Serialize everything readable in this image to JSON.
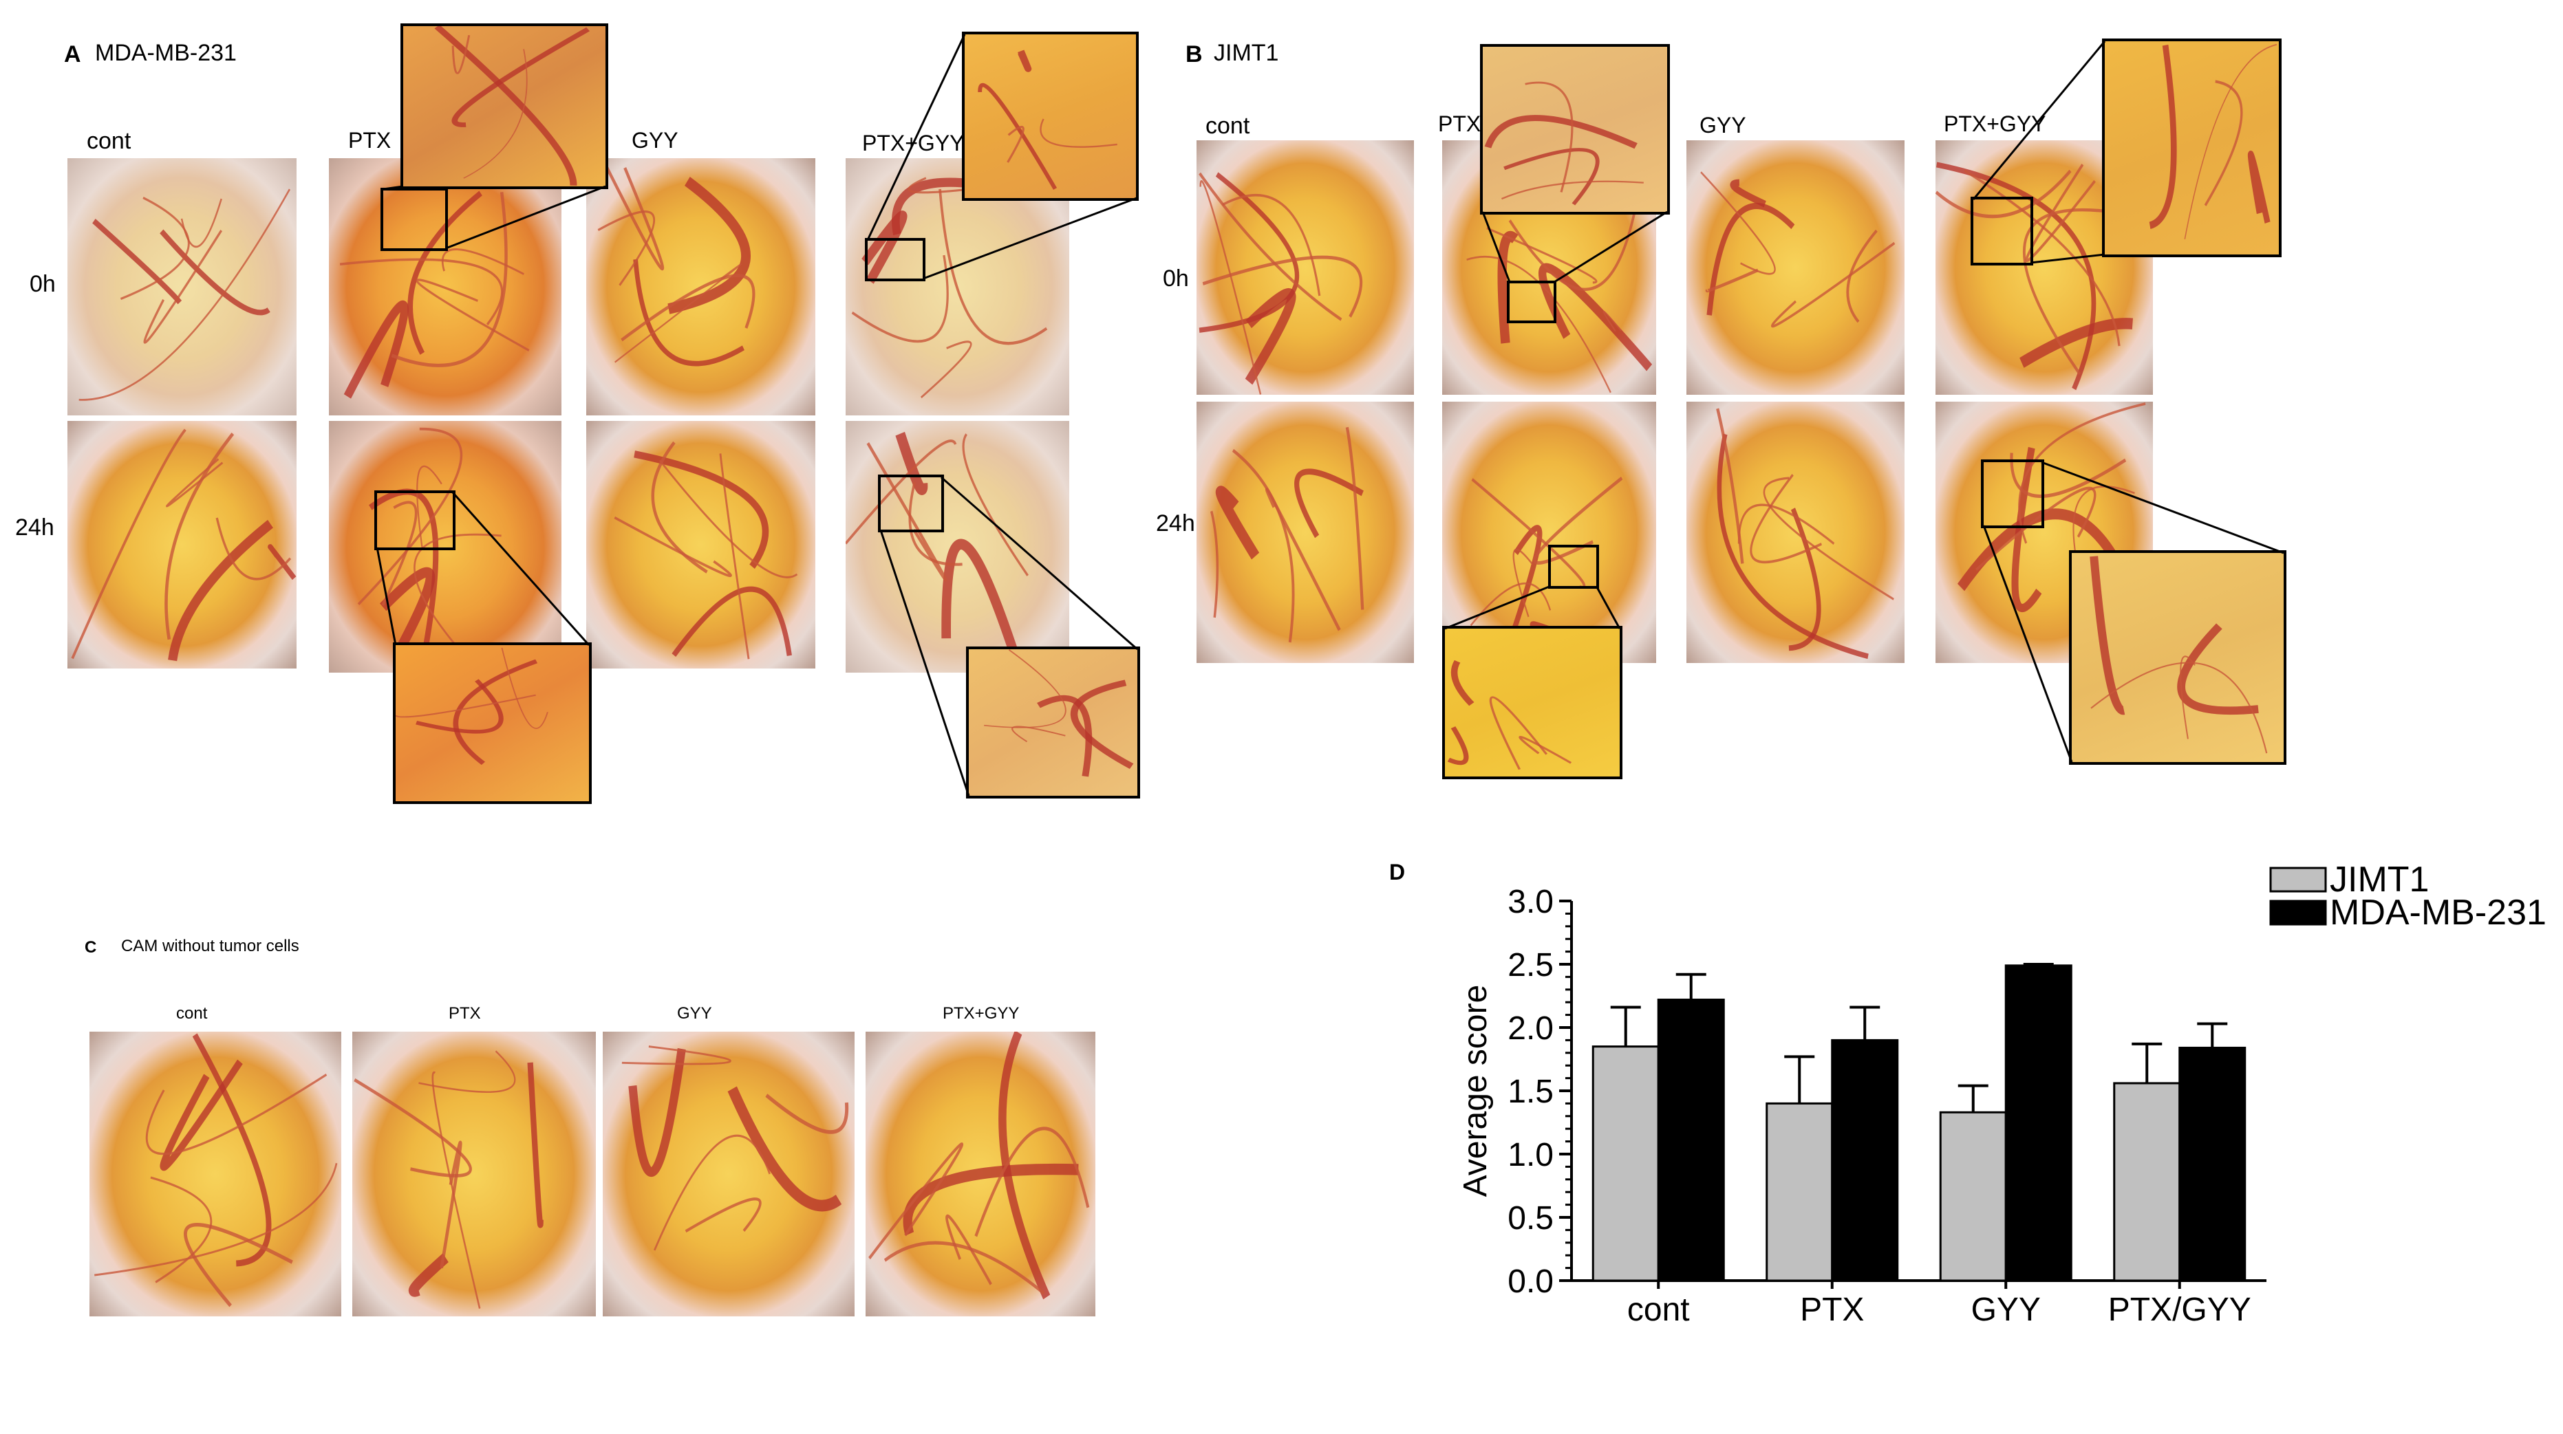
{
  "panel_a": {
    "letter": "A",
    "title": "MDA-MB-231",
    "columns": [
      "cont",
      "PTX",
      "GYY",
      "PTX+GYY"
    ],
    "rows": [
      "0h",
      "24h"
    ]
  },
  "panel_b": {
    "letter": "B",
    "title": "JIMT1",
    "columns": [
      "cont",
      "PTX",
      "GYY",
      "PTX+GYY"
    ],
    "rows": [
      "0h",
      "24h"
    ]
  },
  "panel_c": {
    "letter": "C",
    "title": "CAM without tumor cells",
    "columns": [
      "cont",
      "PTX",
      "GYY",
      "PTX+GYY"
    ]
  },
  "panel_d": {
    "letter": "D"
  },
  "chart_data": {
    "type": "bar",
    "categories": [
      "cont",
      "PTX",
      "GYY",
      "PTX/GYY"
    ],
    "series": [
      {
        "name": "JIMT1",
        "color": "#c0c0c0",
        "values": [
          1.85,
          1.4,
          1.33,
          1.56
        ],
        "errors": [
          0.31,
          0.37,
          0.21,
          0.31
        ]
      },
      {
        "name": "MDA-MB-231",
        "color": "#000000",
        "values": [
          2.22,
          1.9,
          2.49,
          1.84
        ],
        "errors": [
          0.2,
          0.26,
          0.01,
          0.19
        ]
      }
    ],
    "ylabel": "Average score",
    "ylim": [
      0,
      3.0
    ],
    "yticks": [
      "0.0",
      "0.5",
      "1.0",
      "1.5",
      "2.0",
      "2.5",
      "3.0"
    ],
    "legend_position": "top-right"
  },
  "icons": [
    "cam-photo"
  ]
}
